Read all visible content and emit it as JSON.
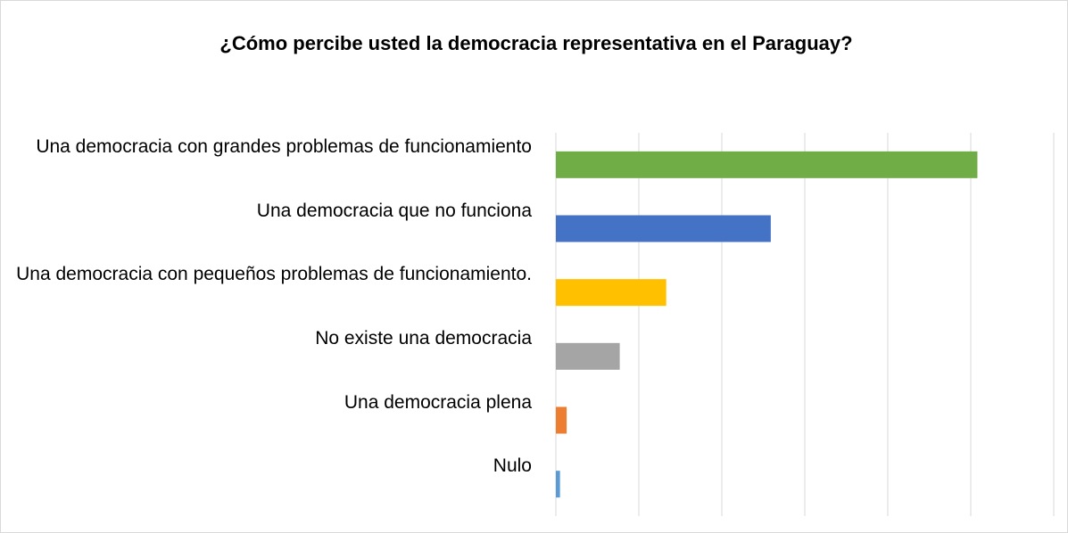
{
  "chart_data": {
    "type": "barh",
    "title": "¿Cómo percibe usted la democracia representativa en el Paraguay?",
    "categories": [
      "Una democracia con grandes problemas de funcionamiento",
      "Una democracia que no funciona",
      "Una democracia con pequeños problemas de funcionamiento.",
      "No existe una democracia",
      "Una democracia plena",
      "Nulo"
    ],
    "values": [
      5.08,
      2.59,
      1.33,
      0.77,
      0.13,
      0.05
    ],
    "colors": [
      "#70ad47",
      "#4472c4",
      "#ffc000",
      "#a5a5a5",
      "#ed7d31",
      "#5b9bd5"
    ],
    "xlim": [
      0,
      6
    ],
    "xticks": [
      0,
      1,
      2,
      3,
      4,
      5,
      6
    ],
    "grid": true
  }
}
